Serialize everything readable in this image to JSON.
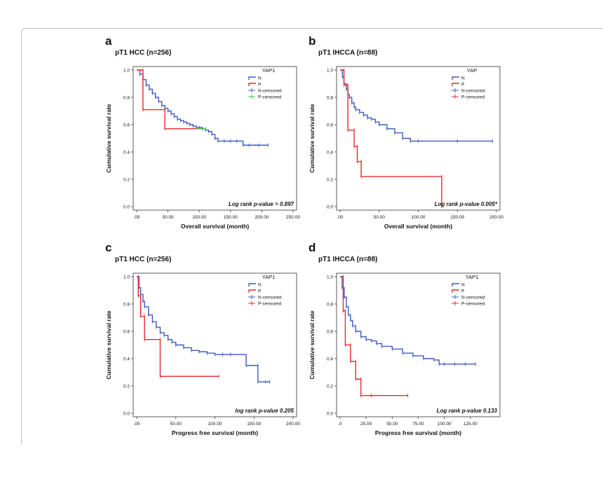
{
  "colors": {
    "N": "#3f5bbf",
    "P": "#e8292d",
    "P_censored_a": "#3fbf3f",
    "axis": "#222222"
  },
  "chart_data": [
    {
      "type": "line",
      "panel_letter": "a",
      "title": "pT1 HCC (n=256)",
      "xlabel": "Overall survival (month)",
      "ylabel": "Cumulative survival rate",
      "xlim": [
        0,
        250
      ],
      "ylim": [
        0,
        1
      ],
      "xticks": [
        ".00",
        "50.00",
        "100.00",
        "150.00",
        "200.00",
        "250.00"
      ],
      "yticks": [
        "0.0",
        "0.2",
        "0.4",
        "0.6",
        "0.8",
        "1.0"
      ],
      "legend_title": "YAP1",
      "legend": [
        "N",
        "P",
        "N-censored",
        "P-censored"
      ],
      "annotation": "Log rank p-value = 0.897",
      "series": [
        {
          "name": "N",
          "color_key": "N",
          "x": [
            0,
            5,
            10,
            15,
            20,
            25,
            30,
            35,
            40,
            45,
            50,
            55,
            60,
            65,
            70,
            75,
            80,
            85,
            90,
            95,
            100,
            105,
            110,
            115,
            120,
            125,
            130,
            140,
            150,
            160,
            170,
            180,
            195,
            210
          ],
          "y": [
            1,
            0.97,
            0.93,
            0.89,
            0.86,
            0.83,
            0.8,
            0.77,
            0.74,
            0.72,
            0.7,
            0.68,
            0.66,
            0.64,
            0.63,
            0.62,
            0.61,
            0.6,
            0.59,
            0.58,
            0.58,
            0.57,
            0.56,
            0.55,
            0.53,
            0.5,
            0.48,
            0.48,
            0.48,
            0.48,
            0.45,
            0.45,
            0.45,
            0.45
          ]
        },
        {
          "name": "P",
          "color_key": "P",
          "x": [
            0,
            10,
            10,
            45,
            45,
            110
          ],
          "y": [
            1,
            1,
            0.71,
            0.71,
            0.57,
            0.57
          ]
        },
        {
          "name": "P-censored",
          "color_key": "P_censored_a",
          "x": [
            95,
            110
          ],
          "y": [
            0.57,
            0.57
          ]
        }
      ]
    },
    {
      "type": "line",
      "panel_letter": "b",
      "title": "pT1 IHCCA (n=88)",
      "xlabel": "Overall survival (month)",
      "ylabel": "Cumulative survival rate",
      "xlim": [
        0,
        200
      ],
      "ylim": [
        0,
        1
      ],
      "xticks": [
        ".00",
        "50.00",
        "100.00",
        "150.00",
        "200.00"
      ],
      "yticks": [
        "0.0",
        "0.2",
        "0.4",
        "0.6",
        "0.8",
        "1.0"
      ],
      "legend_title": "YAP",
      "legend": [
        "N",
        "P",
        "N-censored",
        "P-censored"
      ],
      "annotation": "Log rank p-value 0.005*",
      "series": [
        {
          "name": "N",
          "color_key": "N",
          "x": [
            0,
            3,
            5,
            8,
            10,
            12,
            15,
            18,
            20,
            25,
            30,
            35,
            40,
            45,
            50,
            60,
            70,
            80,
            90,
            100,
            150,
            195
          ],
          "y": [
            1,
            0.95,
            0.9,
            0.86,
            0.82,
            0.8,
            0.76,
            0.73,
            0.71,
            0.69,
            0.67,
            0.65,
            0.64,
            0.62,
            0.6,
            0.57,
            0.54,
            0.5,
            0.48,
            0.48,
            0.48,
            0.48
          ]
        },
        {
          "name": "P",
          "color_key": "P",
          "x": [
            0,
            5,
            5,
            10,
            10,
            18,
            18,
            22,
            22,
            27,
            27,
            130,
            130
          ],
          "y": [
            1,
            1,
            0.89,
            0.89,
            0.56,
            0.56,
            0.44,
            0.44,
            0.33,
            0.33,
            0.22,
            0.22,
            0
          ]
        }
      ]
    },
    {
      "type": "line",
      "panel_letter": "c",
      "title": "pT1 HCC (n=256)",
      "xlabel": "Progress free survival (month)",
      "ylabel": "Cumulative survival rate",
      "xlim": [
        0,
        200
      ],
      "ylim": [
        0,
        1
      ],
      "xticks": [
        ".00",
        "50.00",
        "100.00",
        "150.00",
        "200.00"
      ],
      "yticks": [
        "0.0",
        "0.2",
        "0.4",
        "0.6",
        "0.8",
        "1.0"
      ],
      "legend_title": "YAP1",
      "legend": [
        "N",
        "P",
        "N-censored",
        "P-censored"
      ],
      "annotation": "log rank p-value 0.205",
      "series": [
        {
          "name": "N",
          "color_key": "N",
          "x": [
            0,
            3,
            5,
            8,
            10,
            15,
            20,
            25,
            30,
            35,
            40,
            45,
            50,
            60,
            70,
            80,
            90,
            100,
            110,
            120,
            140,
            155,
            155,
            165,
            170
          ],
          "y": [
            1,
            0.92,
            0.87,
            0.82,
            0.78,
            0.72,
            0.67,
            0.63,
            0.59,
            0.57,
            0.54,
            0.52,
            0.5,
            0.48,
            0.46,
            0.45,
            0.44,
            0.43,
            0.43,
            0.43,
            0.35,
            0.35,
            0.23,
            0.23,
            0.23
          ]
        },
        {
          "name": "P",
          "color_key": "P",
          "x": [
            0,
            2,
            2,
            5,
            5,
            10,
            10,
            30,
            30,
            105
          ],
          "y": [
            1,
            1,
            0.86,
            0.86,
            0.71,
            0.71,
            0.54,
            0.54,
            0.27,
            0.27
          ]
        }
      ]
    },
    {
      "type": "line",
      "panel_letter": "d",
      "title": "pT1 IHCCA (n=88)",
      "xlabel": "Progress free survival (month)",
      "ylabel": "Cumulative survival rate",
      "xlim": [
        0,
        150
      ],
      "ylim": [
        0,
        1
      ],
      "xticks": [
        ".0",
        "25.00",
        "50.00",
        "75.00",
        "100.00",
        "125.00"
      ],
      "yticks": [
        "0.0",
        "0.2",
        "0.4",
        "0.6",
        "0.8",
        "1.0"
      ],
      "legend_title": "YAP1",
      "legend": [
        "N",
        "P",
        "N-censored",
        "P-censored"
      ],
      "annotation": "Log rank p-value 0.133",
      "series": [
        {
          "name": "N",
          "color_key": "N",
          "x": [
            0,
            2,
            4,
            6,
            8,
            10,
            12,
            15,
            20,
            25,
            30,
            35,
            40,
            50,
            60,
            70,
            80,
            90,
            95,
            100,
            110,
            120,
            130
          ],
          "y": [
            1,
            0.92,
            0.85,
            0.78,
            0.72,
            0.68,
            0.64,
            0.6,
            0.56,
            0.54,
            0.53,
            0.51,
            0.49,
            0.47,
            0.44,
            0.42,
            0.4,
            0.39,
            0.36,
            0.36,
            0.36,
            0.36,
            0.36
          ]
        },
        {
          "name": "P",
          "color_key": "P",
          "x": [
            0,
            3,
            3,
            5,
            5,
            10,
            10,
            15,
            15,
            20,
            20,
            30,
            30,
            65
          ],
          "y": [
            1,
            1,
            0.75,
            0.75,
            0.5,
            0.5,
            0.38,
            0.38,
            0.25,
            0.25,
            0.13,
            0.13,
            0.13,
            0.13
          ]
        }
      ]
    }
  ]
}
